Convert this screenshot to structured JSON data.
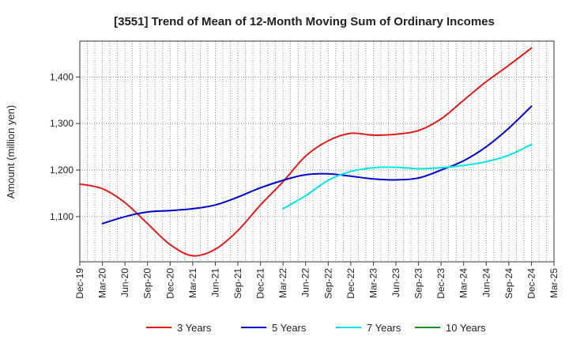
{
  "chart_data": {
    "type": "line",
    "title": "[3551]  Trend of Mean of 12-Month Moving Sum of Ordinary Incomes",
    "xlabel": "",
    "ylabel": "Amount (million yen)",
    "categories": [
      "Dec-19",
      "Mar-20",
      "Jun-20",
      "Sep-20",
      "Dec-20",
      "Mar-21",
      "Jun-21",
      "Sep-21",
      "Dec-21",
      "Mar-22",
      "Jun-22",
      "Sep-22",
      "Dec-22",
      "Mar-23",
      "Jun-23",
      "Sep-23",
      "Dec-23",
      "Mar-24",
      "Jun-24",
      "Sep-24",
      "Dec-24",
      "Mar-25"
    ],
    "ylim": [
      1003,
      1477
    ],
    "yticks": [
      1100,
      1200,
      1300,
      1400
    ],
    "ytick_labels": [
      "1,100",
      "1,200",
      "1,300",
      "1,400"
    ],
    "grid": true,
    "series": [
      {
        "name": "3 Years",
        "color": "#e31a1c",
        "values": [
          1170,
          1160,
          1130,
          1085,
          1040,
          1016,
          1030,
          1070,
          1125,
          1175,
          1230,
          1263,
          1279,
          1275,
          1277,
          1285,
          1310,
          1350,
          1390,
          1425,
          1462,
          null
        ]
      },
      {
        "name": "5 Years",
        "color": "#0000cc",
        "values": [
          null,
          1085,
          1100,
          1110,
          1113,
          1117,
          1125,
          1142,
          1162,
          1178,
          1190,
          1192,
          1187,
          1181,
          1179,
          1183,
          1200,
          1220,
          1250,
          1290,
          1337,
          null
        ]
      },
      {
        "name": "7 Years",
        "color": "#00e5e5",
        "values": [
          null,
          null,
          null,
          null,
          null,
          null,
          null,
          null,
          null,
          1117,
          1145,
          1178,
          1197,
          1205,
          1206,
          1203,
          1205,
          1210,
          1218,
          1232,
          1255,
          null
        ]
      },
      {
        "name": "10 Years",
        "color": "#228b22",
        "values": [
          null,
          null,
          null,
          null,
          null,
          null,
          null,
          null,
          null,
          null,
          null,
          null,
          null,
          null,
          null,
          null,
          null,
          null,
          null,
          null,
          null,
          null
        ]
      }
    ],
    "legend_position": "bottom"
  }
}
